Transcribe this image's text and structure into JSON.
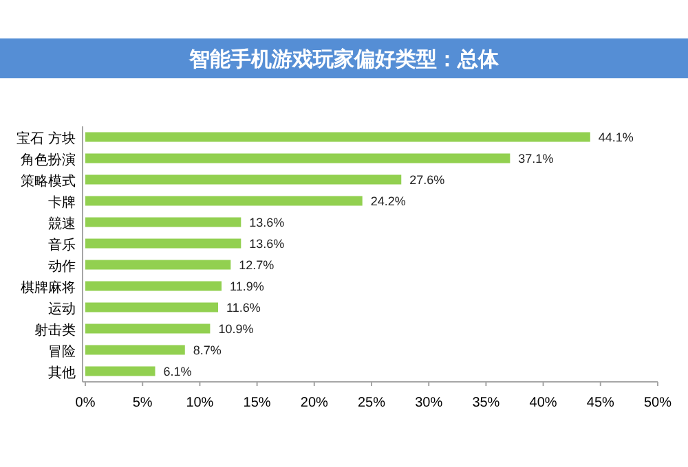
{
  "chart_data": {
    "type": "bar",
    "orientation": "horizontal",
    "title": "智能手机游戏玩家偏好类型：总体",
    "categories": [
      "宝石  方块",
      "角色扮演",
      "策略模式",
      "卡牌",
      "競速",
      "音乐",
      "动作",
      "棋牌麻将",
      "运动",
      "射击类",
      "冒险",
      "其他"
    ],
    "values": [
      44.1,
      37.1,
      27.6,
      24.2,
      13.6,
      13.6,
      12.7,
      11.9,
      11.6,
      10.9,
      8.7,
      6.1
    ],
    "value_labels": [
      "44.1%",
      "37.1%",
      "27.6%",
      "24.2%",
      "13.6%",
      "13.6%",
      "12.7%",
      "11.9%",
      "11.6%",
      "10.9%",
      "8.7%",
      "6.1%"
    ],
    "color": "#92d050",
    "xlim": [
      0,
      50
    ],
    "xticks": [
      {
        "value": 0,
        "label": "0%"
      },
      {
        "value": 5,
        "label": "5%"
      },
      {
        "value": 10,
        "label": "10%"
      },
      {
        "value": 15,
        "label": "15%"
      },
      {
        "value": 20,
        "label": "20%"
      },
      {
        "value": 25,
        "label": "25%"
      },
      {
        "value": 30,
        "label": "30%"
      },
      {
        "value": 35,
        "label": "35%"
      },
      {
        "value": 40,
        "label": "40%"
      },
      {
        "value": 45,
        "label": "45%"
      },
      {
        "value": 50,
        "label": "50%"
      }
    ],
    "grid": false,
    "legend": false
  }
}
